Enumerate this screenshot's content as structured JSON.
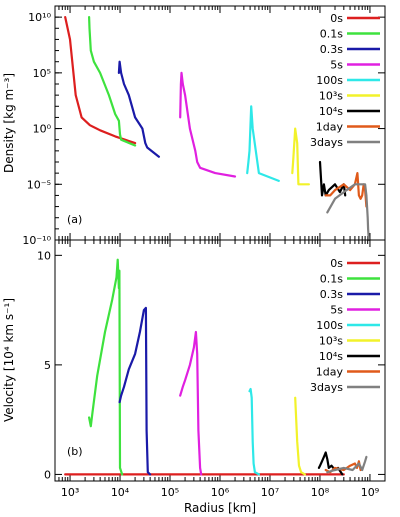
{
  "chart_data": [
    {
      "type": "line",
      "panel_label": "(a)",
      "ylabel": "Density [kg m⁻³]",
      "xlabel": "",
      "x_scale": "log",
      "y_scale": "log",
      "xlim": [
        500,
        2000000000
      ],
      "ylim": [
        1e-10,
        100000000000.0
      ],
      "y_ticks": [
        1e-10,
        1e-05,
        1,
        100000.0,
        10000000000.0
      ],
      "y_tick_labels": [
        "10⁻¹⁰",
        "10⁻⁵",
        "10⁰",
        "10⁵",
        "10¹⁰"
      ],
      "series": [
        {
          "name": "0s",
          "color": "#dd1f1f",
          "x": [
            800,
            1000,
            1300,
            1700,
            2500,
            4000,
            8000,
            20000
          ],
          "y": [
            10000000000.0,
            100000000.0,
            1000,
            10,
            2,
            0.7,
            0.2,
            0.05
          ]
        },
        {
          "name": "0.1s",
          "color": "#3ee23e",
          "x": [
            2400,
            2450,
            2600,
            3000,
            4000,
            6000,
            8000,
            9500,
            10000,
            10500,
            20000
          ],
          "y": [
            10000000000.0,
            1000000000.0,
            10000000.0,
            1000000.0,
            100000.0,
            1000,
            20,
            5,
            0.3,
            0.1,
            0.03
          ]
        },
        {
          "name": "0.3s",
          "color": "#1a1aa8",
          "x": [
            9500,
            9800,
            10500,
            12000,
            15000,
            20000,
            28000,
            32000,
            35000,
            60000
          ],
          "y": [
            100000.0,
            1000000.0,
            100000.0,
            10000.0,
            1000,
            10,
            1,
            0.05,
            0.02,
            0.003
          ]
        },
        {
          "name": "5s",
          "color": "#e020e0",
          "x": [
            160000,
            165000,
            170000,
            180000,
            200000,
            250000,
            320000,
            350000,
            400000,
            800000,
            2000000
          ],
          "y": [
            10,
            10000.0,
            100000.0,
            10000.0,
            1000,
            1,
            0.01,
            0.001,
            0.0003,
            0.0001,
            5e-05
          ]
        },
        {
          "name": "100s",
          "color": "#2ee8e8",
          "x": [
            3500000,
            3700000,
            3900000,
            4200000,
            4500000,
            6000000,
            15000000
          ],
          "y": [
            0.0001,
            0.001,
            0.01,
            100,
            1,
            0.0001,
            2e-05
          ]
        },
        {
          "name": "10³s",
          "color": "#f2f22a",
          "x": [
            28000000,
            29000000,
            30000000,
            32000000,
            35000000,
            37000000,
            60000000
          ],
          "y": [
            0.0001,
            0.001,
            0.01,
            1,
            0.05,
            1e-05,
            1e-05
          ]
        },
        {
          "name": "10⁴s",
          "color": "#000000",
          "x": [
            100000000,
            110000000,
            120000000,
            130000000,
            150000000,
            200000000,
            250000000,
            300000000,
            320000000
          ],
          "y": [
            0.001,
            1e-06,
            1e-05,
            1e-06,
            3e-06,
            1e-05,
            2e-06,
            1e-05,
            1e-06
          ]
        },
        {
          "name": "1day",
          "color": "#e05a1a",
          "x": [
            130000000,
            160000000,
            200000000,
            300000000,
            400000000,
            500000000,
            560000000,
            600000000,
            650000000,
            700000000,
            750000000,
            800000000,
            850000000
          ],
          "y": [
            1e-06,
            1e-06,
            3e-06,
            1e-05,
            3e-06,
            1e-05,
            0.0001,
            1e-06,
            5e-07,
            1e-06,
            1e-05,
            3e-06,
            1e-07
          ]
        },
        {
          "name": "3days",
          "color": "#808080",
          "x": [
            140000000,
            200000000,
            300000000,
            500000000,
            700000000,
            800000000,
            850000000,
            900000000,
            920000000,
            950000000
          ],
          "y": [
            3e-08,
            5e-07,
            2e-06,
            1e-05,
            1e-05,
            1e-05,
            1e-06,
            1e-08,
            1e-09,
            1e-10
          ]
        }
      ],
      "legend": [
        "0s",
        "0.1s",
        "0.3s",
        "5s",
        "100s",
        "10³s",
        "10⁴s",
        "1day",
        "3days"
      ],
      "legend_position": "top-right",
      "grid": false
    },
    {
      "type": "line",
      "panel_label": "(b)",
      "ylabel": "Velocity [10⁴ km s⁻¹]",
      "xlabel": "Radius [km]",
      "x_scale": "log",
      "y_scale": "linear",
      "xlim": [
        500,
        2000000000
      ],
      "ylim": [
        -0.3,
        10.7
      ],
      "x_ticks": [
        1000,
        10000,
        100000,
        1000000,
        10000000,
        100000000,
        1000000000
      ],
      "x_tick_labels": [
        "10³",
        "10⁴",
        "10⁵",
        "10⁶",
        "10⁷",
        "10⁸",
        "10⁹"
      ],
      "y_ticks": [
        0,
        5,
        10
      ],
      "y_tick_labels": [
        "0",
        "5",
        "10"
      ],
      "series": [
        {
          "name": "0s",
          "color": "#dd1f1f",
          "x": [
            800,
            2000,
            10000,
            100000,
            1000000,
            100000000,
            300000000
          ],
          "y": [
            0,
            0,
            0,
            0,
            0,
            0,
            0
          ]
        },
        {
          "name": "0.1s",
          "color": "#3ee23e",
          "x": [
            2400,
            2600,
            2800,
            3500,
            5000,
            7000,
            8500,
            9000,
            9500,
            9700,
            10000,
            11000
          ],
          "y": [
            2.6,
            2.2,
            2.8,
            4.5,
            6.5,
            8.0,
            9.0,
            9.8,
            8.5,
            9.3,
            0.3,
            0
          ]
        },
        {
          "name": "0.3s",
          "color": "#1a1aa8",
          "x": [
            9800,
            10500,
            12000,
            15000,
            20000,
            25000,
            30000,
            33000,
            34000,
            36000,
            40000
          ],
          "y": [
            3.3,
            3.6,
            4.0,
            4.8,
            5.5,
            6.5,
            7.5,
            7.6,
            2.0,
            0.1,
            0
          ]
        },
        {
          "name": "5s",
          "color": "#e020e0",
          "x": [
            160000,
            180000,
            200000,
            250000,
            300000,
            330000,
            350000,
            370000,
            400000,
            420000
          ],
          "y": [
            3.6,
            4.0,
            4.3,
            5.0,
            5.8,
            6.5,
            5.5,
            2.0,
            0.3,
            0
          ]
        },
        {
          "name": "100s",
          "color": "#2ee8e8",
          "x": [
            3900000,
            4100000,
            4300000,
            4500000,
            4700000,
            5000000,
            6000000
          ],
          "y": [
            3.8,
            3.9,
            3.5,
            1.5,
            0.5,
            0.1,
            0
          ]
        },
        {
          "name": "10³s",
          "color": "#f2f22a",
          "x": [
            32000000,
            33000000,
            35000000,
            38000000,
            42000000,
            50000000
          ],
          "y": [
            3.5,
            2.8,
            1.5,
            0.4,
            0.1,
            0
          ]
        },
        {
          "name": "10⁴s",
          "color": "#000000",
          "x": [
            95000000,
            100000000,
            110000000,
            120000000,
            130000000,
            140000000,
            150000000,
            170000000,
            200000000,
            230000000,
            280000000
          ],
          "y": [
            0.3,
            0.4,
            0.6,
            0.8,
            1.0,
            0.7,
            0.3,
            0.4,
            0.2,
            0.3,
            0
          ]
        },
        {
          "name": "1day",
          "color": "#e05a1a",
          "x": [
            130000000,
            160000000,
            200000000,
            300000000,
            400000000,
            500000000,
            550000000,
            600000000,
            650000000,
            700000000
          ],
          "y": [
            0.2,
            0.1,
            0.3,
            0.2,
            0.4,
            0.5,
            0.3,
            0.6,
            0.2,
            0.3
          ]
        },
        {
          "name": "3days",
          "color": "#808080",
          "x": [
            140000000,
            200000000,
            300000000,
            450000000,
            600000000,
            700000000,
            800000000,
            850000000
          ],
          "y": [
            0.1,
            0.2,
            0.3,
            0.2,
            0.5,
            0.2,
            0.6,
            0.8
          ]
        }
      ],
      "legend": [
        "0s",
        "0.1s",
        "0.3s",
        "5s",
        "100s",
        "10³s",
        "10⁴s",
        "1day",
        "3days"
      ],
      "legend_position": "top-right",
      "grid": false
    }
  ]
}
